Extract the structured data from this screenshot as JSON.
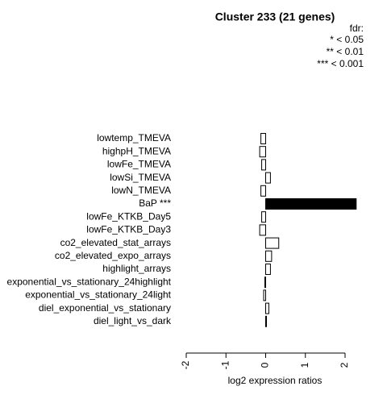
{
  "chart_data": {
    "type": "barh",
    "title": "Cluster 233 (21 genes)",
    "legend_title": "fdr:",
    "legend_entries": [
      "* < 0.05",
      "** < 0.01",
      "*** < 0.001"
    ],
    "xlabel": "log2 expression ratios",
    "categories": [
      "lowtemp_TMEVA",
      "highpH_TMEVA",
      "lowFe_TMEVA",
      "lowSi_TMEVA",
      "lowN_TMEVA",
      "BaP ***",
      "lowFe_KTKB_Day5",
      "lowFe_KTKB_Day3",
      "co2_elevated_stat_arrays",
      "co2_elevated_expo_arrays",
      "highlight_arrays",
      "exponential_vs_stationary_24highlight",
      "exponential_vs_stationary_24light",
      "diel_exponential_vs_stationary",
      "diel_light_vs_dark"
    ],
    "values": [
      -0.12,
      -0.15,
      -0.1,
      0.12,
      -0.12,
      2.28,
      -0.1,
      -0.15,
      0.33,
      0.15,
      0.12,
      -0.02,
      -0.05,
      0.08,
      0.02
    ],
    "colors": [
      "#ffffff",
      "#ffffff",
      "#ffffff",
      "#ffffff",
      "#ffffff",
      "#000000",
      "#ffffff",
      "#ffffff",
      "#ffffff",
      "#ffffff",
      "#ffffff",
      "#ffffff",
      "#ffffff",
      "#ffffff",
      "#ffffff"
    ],
    "xlim": [
      -2,
      2
    ],
    "xticks": [
      -2,
      -1,
      0,
      1,
      2
    ]
  }
}
